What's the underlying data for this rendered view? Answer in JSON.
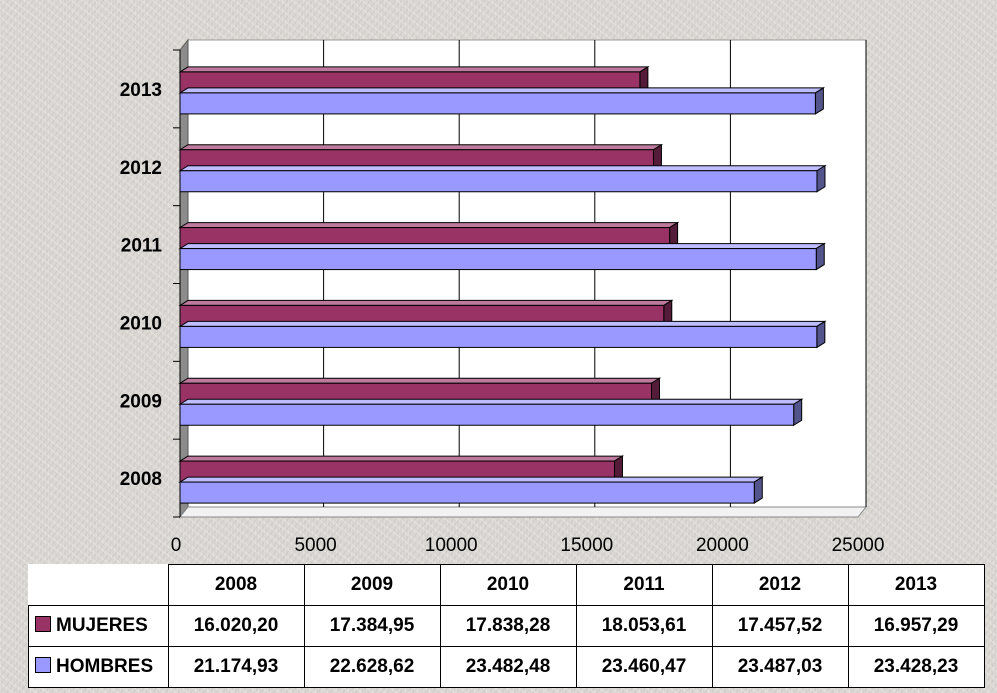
{
  "chart_data": {
    "type": "bar",
    "orientation": "horizontal",
    "three_d": true,
    "categories": [
      "2008",
      "2009",
      "2010",
      "2011",
      "2012",
      "2013"
    ],
    "series": [
      {
        "name": "MUJERES",
        "color": "#993366",
        "values": [
          16020.2,
          17384.95,
          17838.28,
          18053.61,
          17457.52,
          16957.29
        ],
        "labels": [
          "16.020,20",
          "17.384,95",
          "17.838,28",
          "18.053,61",
          "17.457,52",
          "16.957,29"
        ]
      },
      {
        "name": "HOMBRES",
        "color": "#9999ff",
        "values": [
          21174.93,
          22628.62,
          23482.48,
          23460.47,
          23487.03,
          23428.23
        ],
        "labels": [
          "21.174,93",
          "22.628,62",
          "23.482,48",
          "23.460,47",
          "23.487,03",
          "23.428,23"
        ]
      }
    ],
    "xlim": [
      0,
      25000
    ],
    "x_ticks": [
      "0",
      "5000",
      "10000",
      "15000",
      "20000",
      "25000"
    ],
    "grid": true,
    "legend": "data-table-bottom",
    "xlabel": "",
    "ylabel": "",
    "title": ""
  }
}
